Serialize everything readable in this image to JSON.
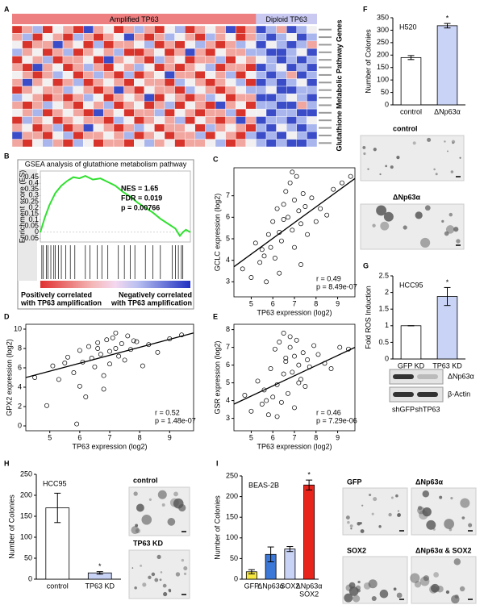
{
  "chart_data": [
    {
      "type": "heatmap",
      "panel": "A",
      "title": "Glutathione Metabolic Pathway Genes",
      "scale": {
        "values": [
          -2,
          -1,
          0,
          1,
          2
        ],
        "colors": [
          "#3b4cc8",
          "#a9b6ee",
          "#f2f0f0",
          "#f2a6a0",
          "#d8342c"
        ]
      },
      "groups": [
        {
          "label": "Amplified TP63",
          "color": "#ee7f80",
          "values": [
            [
              2,
              1,
              -1,
              2,
              0,
              1,
              2,
              -2,
              1,
              0,
              2,
              1,
              -1,
              1,
              2,
              0,
              -1,
              2,
              1,
              0,
              1,
              -2,
              2,
              1
            ],
            [
              1,
              -1,
              2,
              0,
              1,
              2,
              -1,
              1,
              2,
              1,
              0,
              -2,
              1,
              2,
              1,
              -1,
              0,
              1,
              2,
              -1,
              1,
              0,
              2,
              1
            ],
            [
              0,
              2,
              1,
              1,
              -2,
              1,
              0,
              2,
              -1,
              2,
              1,
              1,
              0,
              -1,
              2,
              1,
              2,
              0,
              -1,
              1,
              2,
              1,
              -1,
              0
            ],
            [
              -1,
              1,
              0,
              2,
              1,
              -1,
              2,
              1,
              0,
              1,
              -1,
              2,
              2,
              1,
              0,
              2,
              1,
              -2,
              1,
              2,
              0,
              1,
              1,
              -1
            ],
            [
              2,
              0,
              1,
              -1,
              2,
              1,
              1,
              0,
              2,
              -2,
              1,
              0,
              1,
              2,
              -1,
              1,
              0,
              2,
              1,
              1,
              -1,
              2,
              0,
              1
            ],
            [
              1,
              2,
              -2,
              1,
              0,
              2,
              1,
              -1,
              1,
              2,
              0,
              1,
              -1,
              0,
              2,
              1,
              2,
              1,
              0,
              -1,
              2,
              1,
              1,
              2
            ],
            [
              0,
              1,
              2,
              1,
              -1,
              0,
              2,
              1,
              -1,
              1,
              2,
              -1,
              2,
              1,
              0,
              -2,
              1,
              1,
              2,
              0,
              1,
              -1,
              2,
              0
            ],
            [
              1,
              -2,
              1,
              0,
              2,
              1,
              -1,
              2,
              1,
              0,
              1,
              2,
              0,
              1,
              1,
              2,
              -1,
              0,
              1,
              2,
              1,
              0,
              -1,
              2
            ],
            [
              2,
              1,
              0,
              1,
              1,
              -1,
              0,
              1,
              2,
              1,
              -2,
              1,
              2,
              0,
              1,
              1,
              2,
              -1,
              0,
              1,
              2,
              1,
              0,
              -1
            ],
            [
              -1,
              0,
              1,
              2,
              1,
              2,
              1,
              -1,
              0,
              2,
              1,
              0,
              1,
              -2,
              2,
              0,
              1,
              2,
              1,
              -1,
              0,
              2,
              1,
              1
            ],
            [
              1,
              2,
              1,
              -1,
              0,
              1,
              2,
              0,
              1,
              -1,
              2,
              1,
              0,
              2,
              1,
              -1,
              2,
              0,
              1,
              2,
              -2,
              1,
              0,
              2
            ],
            [
              0,
              1,
              -1,
              2,
              1,
              0,
              1,
              2,
              -2,
              1,
              0,
              2,
              1,
              1,
              -1,
              2,
              0,
              1,
              2,
              1,
              1,
              -1,
              2,
              0
            ],
            [
              2,
              -1,
              1,
              0,
              2,
              1,
              0,
              1,
              1,
              2,
              -1,
              0,
              2,
              1,
              0,
              1,
              -1,
              2,
              0,
              1,
              2,
              1,
              -2,
              1
            ],
            [
              1,
              0,
              2,
              1,
              -1,
              2,
              1,
              -2,
              0,
              1,
              2,
              1,
              -1,
              0,
              2,
              1,
              1,
              0,
              2,
              -1,
              1,
              0,
              1,
              2
            ],
            [
              -2,
              1,
              1,
              2,
              0,
              -1,
              2,
              1,
              1,
              0,
              1,
              -1,
              2,
              1,
              0,
              2,
              1,
              1,
              -1,
              2,
              0,
              1,
              2,
              -1
            ],
            [
              1,
              2,
              0,
              -1,
              1,
              2,
              -1,
              0,
              2,
              1,
              1,
              2,
              0,
              -1,
              1,
              0,
              2,
              1,
              1,
              0,
              -1,
              2,
              1,
              0
            ]
          ]
        },
        {
          "label": "Diploid TP63",
          "color": "#c9c9f2",
          "values": [
            [
              -2,
              -1,
              1,
              -2,
              -1,
              0
            ],
            [
              -1,
              -2,
              -1,
              0,
              -2,
              -1
            ],
            [
              -2,
              0,
              -1,
              -2,
              -1,
              1
            ],
            [
              -1,
              -2,
              -2,
              -1,
              0,
              -2
            ],
            [
              0,
              -1,
              -2,
              -1,
              -2,
              -1
            ],
            [
              -2,
              -1,
              0,
              -2,
              -1,
              -2
            ],
            [
              -1,
              -2,
              -1,
              1,
              -2,
              -1
            ],
            [
              -2,
              -1,
              -2,
              -1,
              0,
              -2
            ],
            [
              -1,
              0,
              -2,
              -2,
              -1,
              -1
            ],
            [
              -2,
              -2,
              -1,
              0,
              -1,
              -2
            ],
            [
              -1,
              -1,
              -2,
              -2,
              1,
              -1
            ],
            [
              0,
              -2,
              -1,
              -1,
              -2,
              -2
            ],
            [
              -2,
              -1,
              -1,
              -2,
              -1,
              0
            ],
            [
              -1,
              -2,
              0,
              -1,
              -2,
              -1
            ],
            [
              -2,
              -1,
              -2,
              0,
              -1,
              -2
            ],
            [
              -1,
              -2,
              -1,
              -2,
              -2,
              -1
            ]
          ]
        }
      ]
    },
    {
      "type": "line",
      "panel": "B",
      "title": "GSEA analysis of glutathione metabolism pathway",
      "ylabel": "Enrichment score (ES)",
      "color": "#2fe02f",
      "x": [
        0,
        0.03,
        0.06,
        0.1,
        0.14,
        0.18,
        0.22,
        0.26,
        0.3,
        0.35,
        0.4,
        0.45,
        0.5,
        0.55,
        0.6,
        0.65,
        0.7,
        0.75,
        0.8,
        0.85,
        0.9,
        0.93,
        0.95,
        0.97,
        1
      ],
      "y": [
        0,
        0.12,
        0.22,
        0.32,
        0.38,
        0.42,
        0.45,
        0.44,
        0.46,
        0.43,
        0.44,
        0.41,
        0.38,
        0.33,
        0.29,
        0.24,
        0.2,
        0.16,
        0.11,
        0.07,
        0.03,
        -0.03,
        0,
        0.02,
        0
      ],
      "xlim": [
        0,
        1
      ],
      "ylim": [
        -0.08,
        0.5
      ],
      "yticks": [
        0.45,
        0.4,
        0.35,
        0.3,
        0.25,
        0.2,
        0.15,
        0.1,
        0.05,
        0,
        -0.05
      ],
      "hits": [
        0.01,
        0.02,
        0.04,
        0.05,
        0.07,
        0.09,
        0.1,
        0.12,
        0.14,
        0.17,
        0.2,
        0.23,
        0.3,
        0.33,
        0.38,
        0.41,
        0.45,
        0.52,
        0.56,
        0.6,
        0.63,
        0.7,
        0.75,
        0.8,
        0.88,
        0.9,
        0.92,
        0.94,
        0.95
      ],
      "stats": [
        "NES = 1.65",
        "FDR = 0.019",
        "p = 0.00766"
      ],
      "positive_label": [
        "Positively correlated",
        "with TP63 amplification"
      ],
      "negative_label": [
        "Negatively correlated",
        "with TP63 amplification"
      ]
    },
    {
      "type": "scatter",
      "panel": "C",
      "xlabel": "TP63 expression (log2)",
      "ylabel": "GCLC expression (log2)",
      "x": [
        4.6,
        5.0,
        5.2,
        5.4,
        5.5,
        5.7,
        5.8,
        5.9,
        6.0,
        6.1,
        6.2,
        6.3,
        6.4,
        6.5,
        6.5,
        6.6,
        6.7,
        6.8,
        6.9,
        7.0,
        7.0,
        7.1,
        7.2,
        7.3,
        7.4,
        7.5,
        7.6,
        7.8,
        8.0,
        8.2,
        8.5,
        8.8,
        9.2,
        9.6,
        6.3,
        6.9,
        7.3,
        5.6
      ],
      "y": [
        3.6,
        3.2,
        4.8,
        3.9,
        4.5,
        3.0,
        5.2,
        4.6,
        5.8,
        4.1,
        6.4,
        5.3,
        4.9,
        6.6,
        5.9,
        7.2,
        6.0,
        7.6,
        5.4,
        6.8,
        4.6,
        7.9,
        6.3,
        5.7,
        7.1,
        6.5,
        5.2,
        6.9,
        5.8,
        6.4,
        6.1,
        7.3,
        7.6,
        7.9,
        3.4,
        8.1,
        3.8,
        4.2
      ],
      "trendline": {
        "x": [
          4.2,
          9.8
        ],
        "y": [
          3.7,
          7.8
        ]
      },
      "xlim": [
        4.2,
        9.8
      ],
      "ylim": [
        2.3,
        8.3
      ],
      "xticks": [
        5,
        6,
        7,
        8,
        9
      ],
      "yticks": [
        3,
        4,
        5,
        6,
        7
      ],
      "stats": [
        "r = 0.49",
        "p = 8.49e-07"
      ]
    },
    {
      "type": "scatter",
      "panel": "D",
      "xlabel": "TP63 expression (log2)",
      "ylabel": "GPX2 expression (log2)",
      "x": [
        4.5,
        4.9,
        5.1,
        5.3,
        5.6,
        5.8,
        5.9,
        6.0,
        6.1,
        6.2,
        6.3,
        6.4,
        6.5,
        6.6,
        6.7,
        6.8,
        6.9,
        7.0,
        7.0,
        7.1,
        7.2,
        7.3,
        7.4,
        7.5,
        7.6,
        7.7,
        7.9,
        8.1,
        8.3,
        8.6,
        9.0,
        9.4,
        6.0,
        6.6,
        7.2,
        5.5,
        6.8,
        7.8
      ],
      "y": [
        5.0,
        2.1,
        6.2,
        4.8,
        7.1,
        5.5,
        0.2,
        7.8,
        6.6,
        3.0,
        8.2,
        7.0,
        6.1,
        8.6,
        7.4,
        5.2,
        8.9,
        7.7,
        6.4,
        9.1,
        8.0,
        7.2,
        8.5,
        6.8,
        9.3,
        7.9,
        8.7,
        6.2,
        8.4,
        7.6,
        9.0,
        9.4,
        4.1,
        8.0,
        9.6,
        6.5,
        3.8,
        8.8
      ],
      "trendline": {
        "x": [
          4.2,
          9.8
        ],
        "y": [
          5.0,
          9.6
        ]
      },
      "xlim": [
        4.2,
        9.8
      ],
      "ylim": [
        -0.5,
        10.5
      ],
      "xticks": [
        5,
        6,
        7,
        8,
        9
      ],
      "yticks": [
        0,
        2,
        4,
        6,
        8,
        10
      ],
      "stats": [
        "r = 0.52",
        "p = 1.48e-07"
      ]
    },
    {
      "type": "scatter",
      "panel": "E",
      "xlabel": "TP63 expression (log2)",
      "ylabel": "GSR expression (log2)",
      "x": [
        4.7,
        5.0,
        5.3,
        5.5,
        5.6,
        5.8,
        5.9,
        6.0,
        6.1,
        6.2,
        6.3,
        6.4,
        6.5,
        6.5,
        6.6,
        6.7,
        6.8,
        6.9,
        7.0,
        7.0,
        7.1,
        7.2,
        7.3,
        7.4,
        7.5,
        7.6,
        7.7,
        7.9,
        8.1,
        8.4,
        8.7,
        9.1,
        9.5,
        6.2,
        6.8,
        7.2,
        5.7,
        6.6
      ],
      "y": [
        4.3,
        3.4,
        5.1,
        3.8,
        4.6,
        3.2,
        5.8,
        4.2,
        6.9,
        4.9,
        7.3,
        3.9,
        5.5,
        7.8,
        6.2,
        4.4,
        7.0,
        5.6,
        6.5,
        3.6,
        7.4,
        6.0,
        5.2,
        6.7,
        4.8,
        6.3,
        5.9,
        7.1,
        6.6,
        6.1,
        5.8,
        7.0,
        6.9,
        3.1,
        7.6,
        5.0,
        4.0,
        6.4
      ],
      "trendline": {
        "x": [
          4.2,
          9.8
        ],
        "y": [
          3.8,
          7.0
        ]
      },
      "xlim": [
        4.2,
        9.8
      ],
      "ylim": [
        2.3,
        8.3
      ],
      "xticks": [
        5,
        6,
        7,
        8,
        9
      ],
      "yticks": [
        3,
        4,
        5,
        6,
        7,
        8
      ],
      "stats": [
        "r = 0.46",
        "p = 7.29e-06"
      ]
    },
    {
      "type": "bar",
      "panel": "F",
      "label": "H520",
      "ylabel": "Number of Colonies",
      "categories": [
        "control",
        "ΔNp63α"
      ],
      "values": [
        190,
        318
      ],
      "errors": [
        8,
        9
      ],
      "colors": [
        "#ffffff",
        "#c9d3f5"
      ],
      "markers": [
        null,
        "*"
      ],
      "ylim": [
        0,
        350
      ],
      "yticks": [
        0,
        50,
        100,
        150,
        200,
        250,
        300,
        350
      ]
    },
    {
      "type": "image",
      "labels": [
        "control",
        "ΔNp63α"
      ]
    },
    {
      "type": "bar",
      "panel": "G",
      "label": "HCC95",
      "ylabel": "Fold ROS Induction",
      "categories": [
        "GFP KD",
        "TP63 KD"
      ],
      "values": [
        1,
        1.88
      ],
      "errors": [
        0,
        0.27
      ],
      "colors": [
        "#ffffff",
        "#c9d3f5"
      ],
      "markers": [
        null,
        "*"
      ],
      "ylim": [
        0,
        2.5
      ],
      "yticks": [
        0,
        0.5,
        1,
        1.5,
        2,
        2.5
      ]
    },
    {
      "type": "blot",
      "rows": [
        "ΔNp63α",
        "β-Actin"
      ],
      "lanes": [
        "shGFP",
        "shTP63"
      ]
    },
    {
      "type": "bar",
      "panel": "H",
      "label": "HCC95",
      "ylabel": "Number of Colonies",
      "categories": [
        "control",
        "TP63 KD"
      ],
      "values": [
        170,
        15
      ],
      "errors": [
        35,
        3
      ],
      "colors": [
        "#ffffff",
        "#c9d3f5"
      ],
      "markers": [
        null,
        "*"
      ],
      "ylim": [
        0,
        250
      ],
      "yticks": [
        0,
        50,
        100,
        150,
        200,
        250
      ]
    },
    {
      "type": "image",
      "labels": [
        "control",
        "TP63 KD"
      ]
    },
    {
      "type": "bar",
      "panel": "I",
      "label": "BEAS-2B",
      "ylabel": "Number of Colonies",
      "categories": [
        "GFP",
        "ΔNp63α",
        "SOX2",
        [
          "ΔNp63α",
          "SOX2"
        ]
      ],
      "values": [
        18,
        60,
        73,
        228
      ],
      "errors": [
        5,
        18,
        6,
        12
      ],
      "colors": [
        "#f5e642",
        "#3c78d8",
        "#c9d3f5",
        "#e8251c"
      ],
      "markers": [
        null,
        null,
        null,
        "*"
      ],
      "ylim": [
        0,
        250
      ],
      "yticks": [
        0,
        50,
        100,
        150,
        200,
        250
      ]
    },
    {
      "type": "image",
      "labels": [
        "GFP",
        "ΔNp63α",
        "SOX2",
        "ΔNp63α & SOX2"
      ]
    }
  ]
}
